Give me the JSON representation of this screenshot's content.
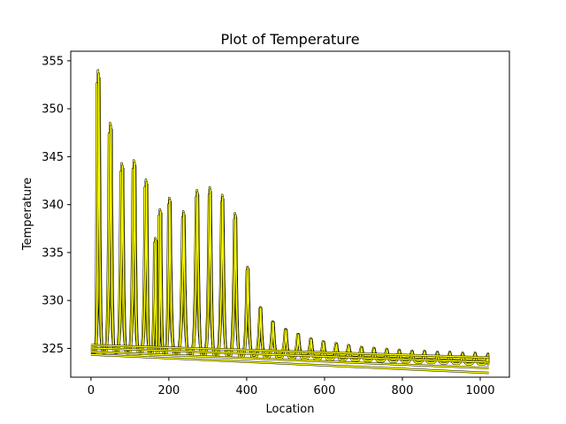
{
  "chart_data": {
    "type": "line",
    "title": "Plot of Temperature",
    "xlabel": "Location",
    "ylabel": "Temperature",
    "xlim": [
      -52,
      1075
    ],
    "ylim": [
      322,
      356
    ],
    "x_ticks": [
      0,
      200,
      400,
      600,
      800,
      1000
    ],
    "y_ticks": [
      325,
      330,
      335,
      340,
      345,
      350,
      355
    ],
    "x_tick_labels": [
      "0",
      "200",
      "400",
      "600",
      "800",
      "1000"
    ],
    "y_tick_labels": [
      "325",
      "330",
      "335",
      "340",
      "345",
      "350",
      "355"
    ],
    "grid": false,
    "legend": "none",
    "line_color": "#ffff00",
    "edge_color": "#000000",
    "series": [
      {
        "peaks": [
          {
            "x": 18,
            "y": 354.0
          },
          {
            "x": 49,
            "y": 348.5
          },
          {
            "x": 79,
            "y": 344.3
          },
          {
            "x": 110,
            "y": 344.6
          },
          {
            "x": 141,
            "y": 342.6
          },
          {
            "x": 165,
            "y": 336.5
          },
          {
            "x": 177,
            "y": 339.5
          },
          {
            "x": 201,
            "y": 340.7
          },
          {
            "x": 237,
            "y": 339.3
          },
          {
            "x": 272,
            "y": 341.5
          },
          {
            "x": 305,
            "y": 341.8
          },
          {
            "x": 337,
            "y": 341.0
          },
          {
            "x": 370,
            "y": 339.1
          },
          {
            "x": 402,
            "y": 333.5
          },
          {
            "x": 435,
            "y": 329.3
          },
          {
            "x": 467,
            "y": 327.8
          },
          {
            "x": 500,
            "y": 327.0
          },
          {
            "x": 532,
            "y": 326.5
          },
          {
            "x": 565,
            "y": 326.0
          },
          {
            "x": 597,
            "y": 325.7
          },
          {
            "x": 630,
            "y": 325.5
          },
          {
            "x": 662,
            "y": 325.3
          },
          {
            "x": 695,
            "y": 325.1
          },
          {
            "x": 727,
            "y": 325.0
          },
          {
            "x": 760,
            "y": 324.9
          },
          {
            "x": 792,
            "y": 324.8
          },
          {
            "x": 825,
            "y": 324.7
          },
          {
            "x": 857,
            "y": 324.7
          },
          {
            "x": 890,
            "y": 324.6
          },
          {
            "x": 922,
            "y": 324.6
          },
          {
            "x": 955,
            "y": 324.5
          },
          {
            "x": 987,
            "y": 324.5
          },
          {
            "x": 1020,
            "y": 324.4
          }
        ],
        "baseline_start": {
          "x": 0,
          "y": 324.8
        },
        "baseline_end": {
          "x": 1022,
          "y": 323.5
        }
      }
    ]
  }
}
